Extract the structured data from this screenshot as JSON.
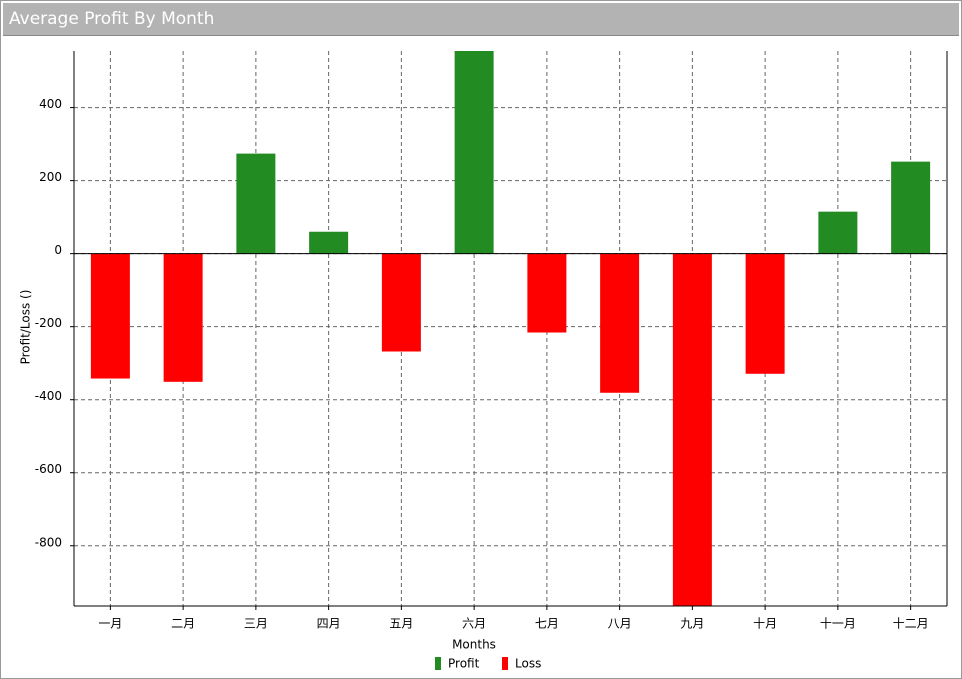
{
  "chart_data": {
    "type": "bar",
    "title": "Average Profit By Month",
    "x_label": "Months",
    "y_label": "Profit/Loss ()",
    "categories": [
      "一月",
      "二月",
      "三月",
      "四月",
      "五月",
      "六月",
      "七月",
      "八月",
      "九月",
      "十月",
      "十一月",
      "十二月"
    ],
    "series": [
      {
        "name": "Profit",
        "color": "#228b22",
        "values": [
          null,
          null,
          274,
          60,
          null,
          555,
          null,
          null,
          null,
          null,
          115,
          252
        ]
      },
      {
        "name": "Loss",
        "color": "#ff0000",
        "values": [
          -342,
          -351,
          null,
          null,
          -268,
          null,
          -216,
          -381,
          -965,
          -329,
          null,
          null
        ]
      }
    ],
    "ylim": [
      -965,
      555
    ],
    "yticks": [
      -800,
      -600,
      -400,
      -200,
      0,
      200,
      400
    ],
    "grid": true
  }
}
